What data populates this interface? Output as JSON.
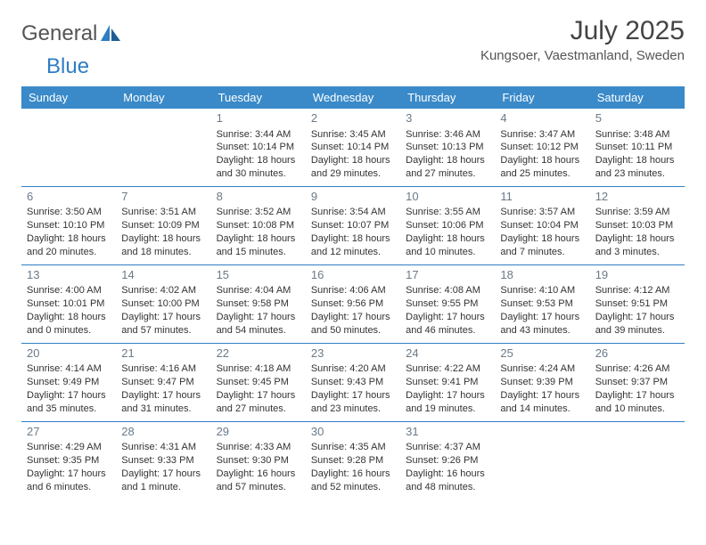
{
  "brand": {
    "part1": "General",
    "part2": "Blue"
  },
  "title": "July 2025",
  "location": "Kungsoer, Vaestmanland, Sweden",
  "colors": {
    "header_bg": "#3a8ac9",
    "accent": "#2f7dc4",
    "text": "#333333",
    "daynum": "#6b7a88",
    "background": "#ffffff"
  },
  "weekdays": [
    "Sunday",
    "Monday",
    "Tuesday",
    "Wednesday",
    "Thursday",
    "Friday",
    "Saturday"
  ],
  "weeks": [
    [
      null,
      null,
      {
        "n": "1",
        "sr": "Sunrise: 3:44 AM",
        "ss": "Sunset: 10:14 PM",
        "d1": "Daylight: 18 hours",
        "d2": "and 30 minutes."
      },
      {
        "n": "2",
        "sr": "Sunrise: 3:45 AM",
        "ss": "Sunset: 10:14 PM",
        "d1": "Daylight: 18 hours",
        "d2": "and 29 minutes."
      },
      {
        "n": "3",
        "sr": "Sunrise: 3:46 AM",
        "ss": "Sunset: 10:13 PM",
        "d1": "Daylight: 18 hours",
        "d2": "and 27 minutes."
      },
      {
        "n": "4",
        "sr": "Sunrise: 3:47 AM",
        "ss": "Sunset: 10:12 PM",
        "d1": "Daylight: 18 hours",
        "d2": "and 25 minutes."
      },
      {
        "n": "5",
        "sr": "Sunrise: 3:48 AM",
        "ss": "Sunset: 10:11 PM",
        "d1": "Daylight: 18 hours",
        "d2": "and 23 minutes."
      }
    ],
    [
      {
        "n": "6",
        "sr": "Sunrise: 3:50 AM",
        "ss": "Sunset: 10:10 PM",
        "d1": "Daylight: 18 hours",
        "d2": "and 20 minutes."
      },
      {
        "n": "7",
        "sr": "Sunrise: 3:51 AM",
        "ss": "Sunset: 10:09 PM",
        "d1": "Daylight: 18 hours",
        "d2": "and 18 minutes."
      },
      {
        "n": "8",
        "sr": "Sunrise: 3:52 AM",
        "ss": "Sunset: 10:08 PM",
        "d1": "Daylight: 18 hours",
        "d2": "and 15 minutes."
      },
      {
        "n": "9",
        "sr": "Sunrise: 3:54 AM",
        "ss": "Sunset: 10:07 PM",
        "d1": "Daylight: 18 hours",
        "d2": "and 12 minutes."
      },
      {
        "n": "10",
        "sr": "Sunrise: 3:55 AM",
        "ss": "Sunset: 10:06 PM",
        "d1": "Daylight: 18 hours",
        "d2": "and 10 minutes."
      },
      {
        "n": "11",
        "sr": "Sunrise: 3:57 AM",
        "ss": "Sunset: 10:04 PM",
        "d1": "Daylight: 18 hours",
        "d2": "and 7 minutes."
      },
      {
        "n": "12",
        "sr": "Sunrise: 3:59 AM",
        "ss": "Sunset: 10:03 PM",
        "d1": "Daylight: 18 hours",
        "d2": "and 3 minutes."
      }
    ],
    [
      {
        "n": "13",
        "sr": "Sunrise: 4:00 AM",
        "ss": "Sunset: 10:01 PM",
        "d1": "Daylight: 18 hours",
        "d2": "and 0 minutes."
      },
      {
        "n": "14",
        "sr": "Sunrise: 4:02 AM",
        "ss": "Sunset: 10:00 PM",
        "d1": "Daylight: 17 hours",
        "d2": "and 57 minutes."
      },
      {
        "n": "15",
        "sr": "Sunrise: 4:04 AM",
        "ss": "Sunset: 9:58 PM",
        "d1": "Daylight: 17 hours",
        "d2": "and 54 minutes."
      },
      {
        "n": "16",
        "sr": "Sunrise: 4:06 AM",
        "ss": "Sunset: 9:56 PM",
        "d1": "Daylight: 17 hours",
        "d2": "and 50 minutes."
      },
      {
        "n": "17",
        "sr": "Sunrise: 4:08 AM",
        "ss": "Sunset: 9:55 PM",
        "d1": "Daylight: 17 hours",
        "d2": "and 46 minutes."
      },
      {
        "n": "18",
        "sr": "Sunrise: 4:10 AM",
        "ss": "Sunset: 9:53 PM",
        "d1": "Daylight: 17 hours",
        "d2": "and 43 minutes."
      },
      {
        "n": "19",
        "sr": "Sunrise: 4:12 AM",
        "ss": "Sunset: 9:51 PM",
        "d1": "Daylight: 17 hours",
        "d2": "and 39 minutes."
      }
    ],
    [
      {
        "n": "20",
        "sr": "Sunrise: 4:14 AM",
        "ss": "Sunset: 9:49 PM",
        "d1": "Daylight: 17 hours",
        "d2": "and 35 minutes."
      },
      {
        "n": "21",
        "sr": "Sunrise: 4:16 AM",
        "ss": "Sunset: 9:47 PM",
        "d1": "Daylight: 17 hours",
        "d2": "and 31 minutes."
      },
      {
        "n": "22",
        "sr": "Sunrise: 4:18 AM",
        "ss": "Sunset: 9:45 PM",
        "d1": "Daylight: 17 hours",
        "d2": "and 27 minutes."
      },
      {
        "n": "23",
        "sr": "Sunrise: 4:20 AM",
        "ss": "Sunset: 9:43 PM",
        "d1": "Daylight: 17 hours",
        "d2": "and 23 minutes."
      },
      {
        "n": "24",
        "sr": "Sunrise: 4:22 AM",
        "ss": "Sunset: 9:41 PM",
        "d1": "Daylight: 17 hours",
        "d2": "and 19 minutes."
      },
      {
        "n": "25",
        "sr": "Sunrise: 4:24 AM",
        "ss": "Sunset: 9:39 PM",
        "d1": "Daylight: 17 hours",
        "d2": "and 14 minutes."
      },
      {
        "n": "26",
        "sr": "Sunrise: 4:26 AM",
        "ss": "Sunset: 9:37 PM",
        "d1": "Daylight: 17 hours",
        "d2": "and 10 minutes."
      }
    ],
    [
      {
        "n": "27",
        "sr": "Sunrise: 4:29 AM",
        "ss": "Sunset: 9:35 PM",
        "d1": "Daylight: 17 hours",
        "d2": "and 6 minutes."
      },
      {
        "n": "28",
        "sr": "Sunrise: 4:31 AM",
        "ss": "Sunset: 9:33 PM",
        "d1": "Daylight: 17 hours",
        "d2": "and 1 minute."
      },
      {
        "n": "29",
        "sr": "Sunrise: 4:33 AM",
        "ss": "Sunset: 9:30 PM",
        "d1": "Daylight: 16 hours",
        "d2": "and 57 minutes."
      },
      {
        "n": "30",
        "sr": "Sunrise: 4:35 AM",
        "ss": "Sunset: 9:28 PM",
        "d1": "Daylight: 16 hours",
        "d2": "and 52 minutes."
      },
      {
        "n": "31",
        "sr": "Sunrise: 4:37 AM",
        "ss": "Sunset: 9:26 PM",
        "d1": "Daylight: 16 hours",
        "d2": "and 48 minutes."
      },
      null,
      null
    ]
  ]
}
